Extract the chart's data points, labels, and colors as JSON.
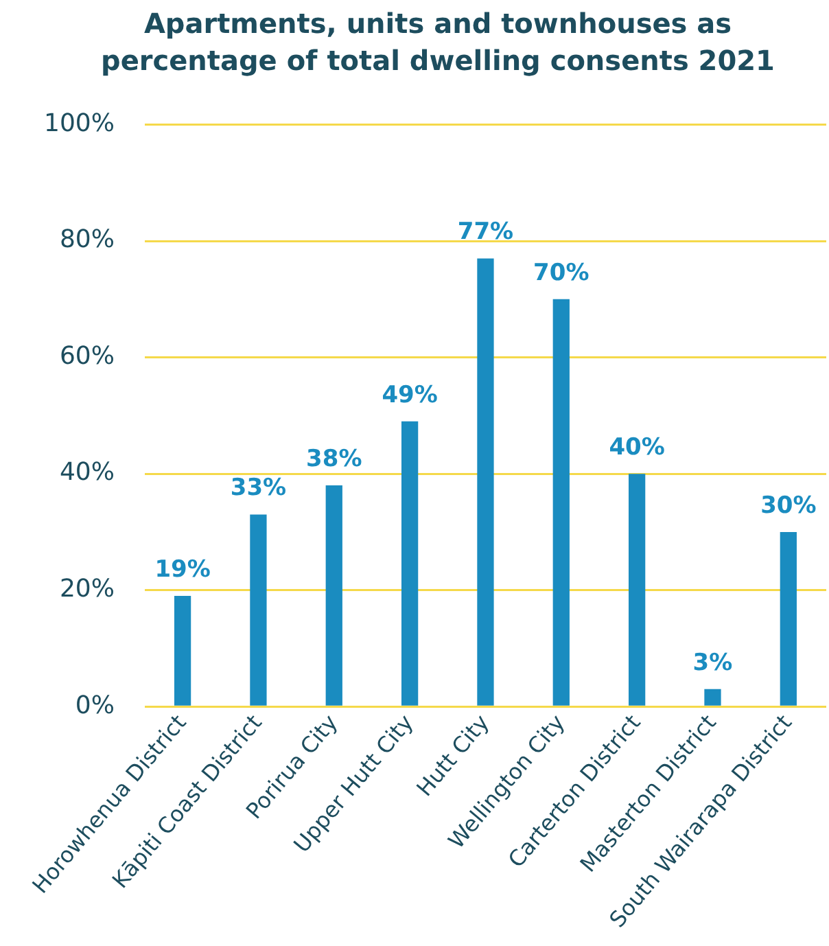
{
  "chart_data": {
    "type": "bar",
    "title": "Apartments, units and townhouses as percentage of total dwelling consents 2021",
    "categories": [
      "Horowhenua District",
      "Kāpiti Coast District",
      "Porirua City",
      "Upper Hutt City",
      "Hutt City",
      "Wellington City",
      "Carterton District",
      "Masterton District",
      "South Wairarapa District"
    ],
    "values": [
      19,
      33,
      38,
      49,
      77,
      70,
      40,
      3,
      30
    ],
    "value_labels": [
      "19%",
      "33%",
      "38%",
      "49%",
      "77%",
      "70%",
      "40%",
      "3%",
      "30%"
    ],
    "color": "#1a8cc0",
    "ylim": [
      0,
      100
    ],
    "yticks": [
      {
        "value": 0,
        "label": "0%"
      },
      {
        "value": 20,
        "label": "20%"
      },
      {
        "value": 40,
        "label": "40%"
      },
      {
        "value": 60,
        "label": "60%"
      },
      {
        "value": 80,
        "label": "80%"
      },
      {
        "value": 100,
        "label": "100%"
      }
    ],
    "grid": "y"
  }
}
